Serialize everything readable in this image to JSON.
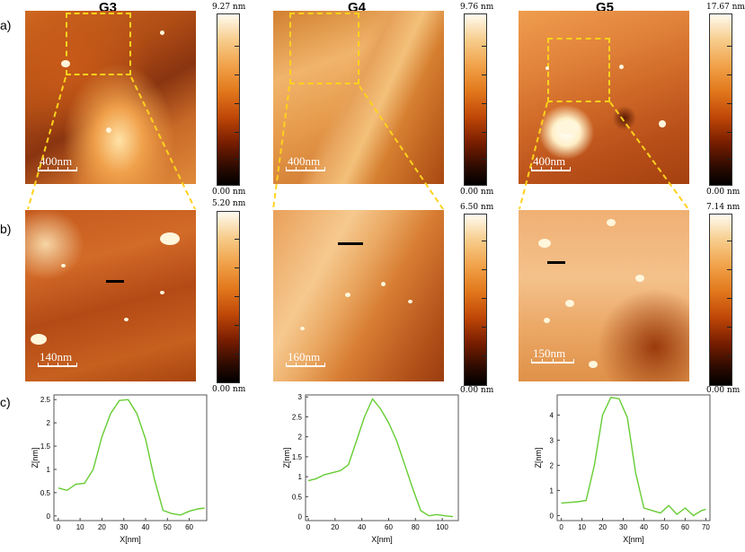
{
  "columns": [
    "G3",
    "G4",
    "G5"
  ],
  "row_labels": [
    "a)",
    "b)",
    "c)"
  ],
  "images_a": [
    {
      "scale": "400nm",
      "cb_max": "9.27 nm",
      "cb_min": "0.00 nm"
    },
    {
      "scale": "400nm",
      "cb_max": "9.76 nm",
      "cb_min": "0.00 nm"
    },
    {
      "scale": "400nm",
      "cb_max": "17.67 nm",
      "cb_min": "0.00 nm"
    }
  ],
  "images_b": [
    {
      "scale": "140nm",
      "cb_max": "5.20 nm",
      "cb_min": "0.00 nm"
    },
    {
      "scale": "160nm",
      "cb_max": "6.50 nm",
      "cb_min": "0.00 nm"
    },
    {
      "scale": "150nm",
      "cb_max": "7.14 nm",
      "cb_min": "0.00 nm"
    }
  ],
  "colors": {
    "profile": "#66cc33",
    "dash": "#ffd21c"
  },
  "chart_data": [
    {
      "type": "line",
      "xlabel": "X[nm]",
      "ylabel": "Z[nm]",
      "xlim": [
        -2,
        68
      ],
      "ylim": [
        -0.1,
        2.6
      ],
      "xticks": [
        0,
        10,
        20,
        30,
        40,
        50,
        60
      ],
      "yticks": [
        0,
        0.5,
        1,
        1.5,
        2,
        2.5
      ],
      "x": [
        0,
        4,
        8,
        12,
        16,
        20,
        24,
        28,
        32,
        36,
        40,
        44,
        48,
        52,
        56,
        60,
        64,
        67
      ],
      "y": [
        0.6,
        0.55,
        0.68,
        0.7,
        1.0,
        1.7,
        2.2,
        2.48,
        2.5,
        2.2,
        1.65,
        0.8,
        0.12,
        0.05,
        0.02,
        0.1,
        0.15,
        0.17
      ]
    },
    {
      "type": "line",
      "xlabel": "X[nm]",
      "ylabel": "Z[nm]",
      "xlim": [
        -2,
        112
      ],
      "ylim": [
        -0.1,
        3.05
      ],
      "xticks": [
        0,
        20,
        40,
        60,
        80,
        100
      ],
      "yticks": [
        0,
        0.5,
        1,
        1.5,
        2,
        2.5,
        3
      ],
      "x": [
        0,
        6,
        12,
        18,
        24,
        30,
        36,
        42,
        48,
        54,
        60,
        66,
        72,
        78,
        84,
        90,
        96,
        102,
        108
      ],
      "y": [
        0.9,
        0.95,
        1.05,
        1.1,
        1.15,
        1.3,
        1.9,
        2.5,
        2.95,
        2.7,
        2.35,
        1.9,
        1.3,
        0.7,
        0.15,
        0.02,
        0.05,
        0.02,
        0.0
      ]
    },
    {
      "type": "line",
      "xlabel": "X[nm]",
      "ylabel": "Z[nm]",
      "xlim": [
        -2,
        72
      ],
      "ylim": [
        -0.2,
        4.8
      ],
      "xticks": [
        0,
        10,
        20,
        30,
        40,
        50,
        60,
        70
      ],
      "yticks": [
        0,
        1,
        2,
        3,
        4
      ],
      "x": [
        0,
        4,
        8,
        12,
        16,
        20,
        24,
        28,
        32,
        36,
        40,
        44,
        48,
        52,
        56,
        60,
        64,
        68,
        70
      ],
      "y": [
        0.5,
        0.52,
        0.55,
        0.6,
        2.0,
        4.0,
        4.7,
        4.65,
        3.9,
        1.7,
        0.3,
        0.2,
        0.1,
        0.4,
        0.05,
        0.3,
        0.0,
        0.2,
        0.25
      ]
    }
  ]
}
